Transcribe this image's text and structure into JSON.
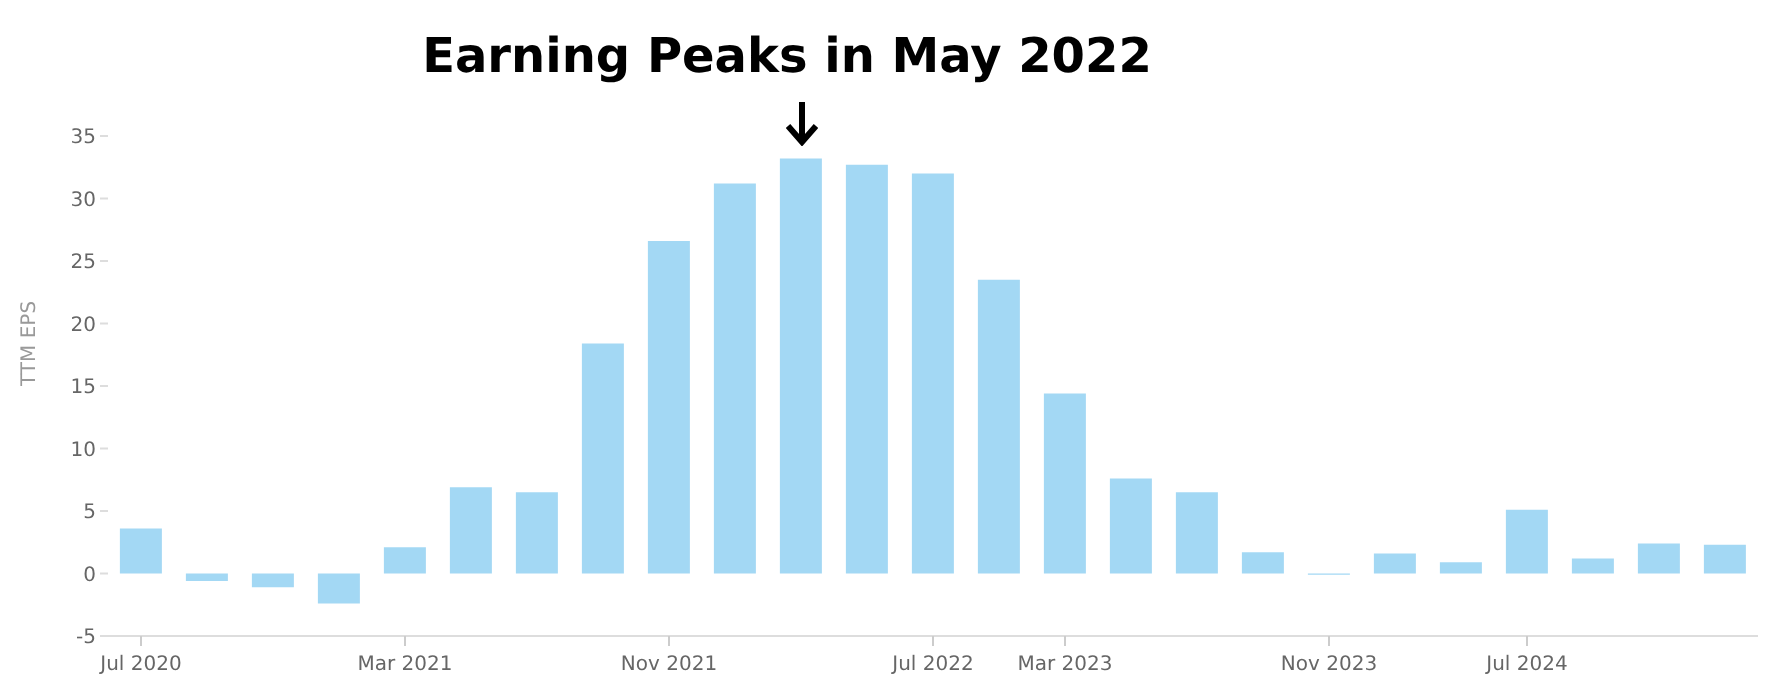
{
  "chart_data": {
    "type": "bar",
    "title": "Earning Peaks in May 2022",
    "ylabel": "TTM EPS",
    "categories": [
      "Jul 2020",
      null,
      null,
      null,
      "Mar 2021",
      null,
      null,
      null,
      "Nov 2021",
      null,
      null,
      null,
      "Jul 2022",
      null,
      "Mar 2023",
      null,
      null,
      null,
      "Nov 2023",
      null,
      null,
      "Jul 2024",
      null,
      null,
      null
    ],
    "values": [
      3.6,
      -0.6,
      -1.1,
      -2.4,
      2.1,
      6.9,
      6.5,
      18.4,
      26.6,
      31.2,
      33.2,
      32.7,
      32.0,
      23.5,
      14.4,
      7.6,
      6.5,
      1.7,
      -0.1,
      1.6,
      0.9,
      5.1,
      1.2,
      2.4,
      2.3
    ],
    "color": "#a3d8f4",
    "ylim": [
      -5,
      35
    ],
    "yticks": [
      -5,
      0,
      5,
      10,
      15,
      20,
      25,
      30,
      35
    ],
    "grid": false,
    "legend": false
  }
}
